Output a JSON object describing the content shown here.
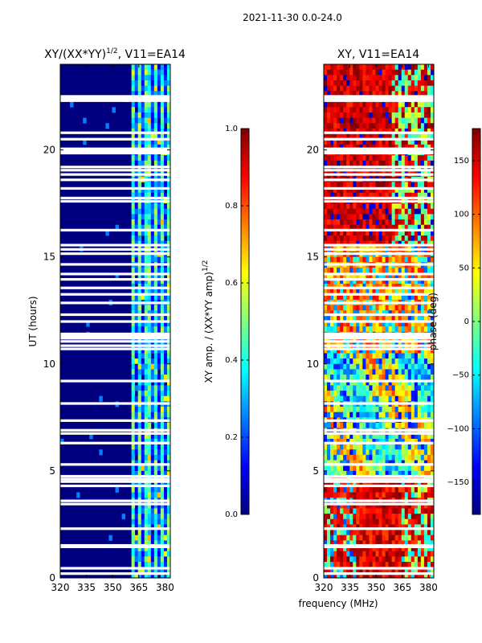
{
  "suptitle": "2021-11-30 0.0-24.0",
  "xlabel_shared": "frequency (MHz)",
  "colors": {
    "jet": [
      "#00007f",
      "#0000ff",
      "#007fff",
      "#00ffff",
      "#7fff7f",
      "#ffff00",
      "#ff7f00",
      "#ff0000",
      "#7f0000"
    ],
    "gap": "#ffffff"
  },
  "chart_data": [
    {
      "type": "heatmap",
      "title_main": "XY/(XX*YY)",
      "title_sup": "1/2",
      "title_tail": ", V11=EA14",
      "xlabel": "",
      "ylabel": "UT (hours)",
      "xlim": [
        320,
        383
      ],
      "ylim": [
        0,
        24
      ],
      "xticks": [
        320,
        335,
        350,
        365,
        380
      ],
      "yticks": [
        0,
        5,
        10,
        15,
        20
      ],
      "colorbar": {
        "label_main": "XY amp. / (XX*YY amp)",
        "label_sup": "1/2",
        "range": [
          0.0,
          1.0
        ],
        "ticks": [
          "0.0",
          "0.2",
          "0.4",
          "0.6",
          "0.8",
          "1.0"
        ],
        "tick_values": [
          0.0,
          0.2,
          0.4,
          0.6,
          0.8,
          1.0
        ]
      },
      "description_bands": [
        {
          "freq": [
            320,
            360
          ],
          "level": 0.05
        },
        {
          "freq": [
            360,
            383
          ],
          "level": 0.4
        }
      ]
    },
    {
      "type": "heatmap",
      "title_main": "XY, V11=EA14",
      "xlabel": "frequency (MHz)",
      "ylabel": "",
      "xlim": [
        320,
        383
      ],
      "ylim": [
        0,
        24
      ],
      "xticks": [
        320,
        335,
        350,
        365,
        380
      ],
      "yticks": [
        0,
        5,
        10,
        15,
        20
      ],
      "colorbar": {
        "label_main": "phase (deg)",
        "range": [
          -180,
          180
        ],
        "ticks": [
          "150",
          "100",
          "50",
          "0",
          "−50",
          "−100",
          "−150"
        ],
        "tick_values": [
          150,
          100,
          50,
          0,
          -50,
          -100,
          -150
        ]
      }
    }
  ],
  "gap_hours": [
    0.2,
    0.45,
    1.45,
    1.52,
    2.3,
    3.45,
    3.6,
    4.3,
    4.5,
    4.62,
    4.75,
    5.3,
    6.3,
    6.75,
    6.9,
    7.35,
    8.15,
    9.2,
    10.7,
    10.85,
    11.05,
    11.2,
    11.3,
    11.4,
    11.98,
    12.3,
    12.85,
    13.25,
    13.55,
    13.95,
    14.2,
    14.65,
    15.15,
    15.35,
    15.55,
    16.25,
    17.6,
    17.75,
    18.2,
    18.6,
    18.85,
    19.05,
    19.2,
    19.85,
    19.95,
    20.05,
    20.5,
    20.8,
    22.3,
    22.4,
    22.5
  ]
}
